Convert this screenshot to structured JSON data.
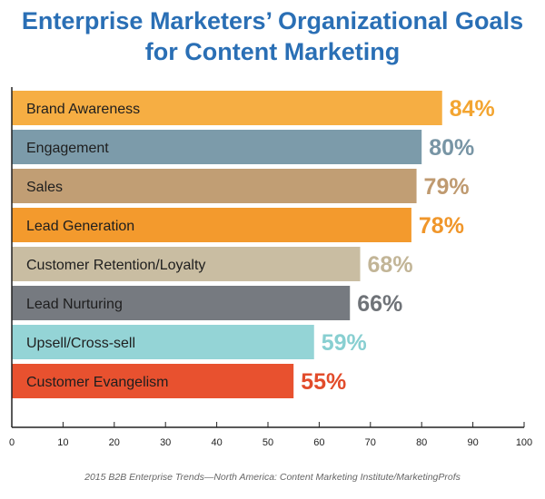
{
  "chart_data": {
    "type": "bar",
    "orientation": "horizontal",
    "title_lines": [
      "Enterprise Marketers’ Organizational Goals",
      "for Content Marketing"
    ],
    "categories": [
      "Brand Awareness",
      "Engagement",
      "Sales",
      "Lead Generation",
      "Customer Retention/Loyalty",
      "Lead Nurturing",
      "Upsell/Cross-sell",
      "Customer Evangelism"
    ],
    "values": [
      84,
      80,
      79,
      78,
      68,
      66,
      59,
      55
    ],
    "value_labels": [
      "84%",
      "80%",
      "79%",
      "78%",
      "68%",
      "66%",
      "59%",
      "55%"
    ],
    "colors": [
      "#f6ae43",
      "#7c9baa",
      "#c19e74",
      "#f39a2d",
      "#c9bda2",
      "#767a80",
      "#94d4d6",
      "#e8512f"
    ],
    "label_colors": [
      "#f3a531",
      "#7895a5",
      "#bf9a70",
      "#f0962a",
      "#c2b597",
      "#6f7378",
      "#88cfd1",
      "#e24c2b"
    ],
    "xlim": [
      0,
      100
    ],
    "xticks": [
      0,
      10,
      20,
      30,
      40,
      50,
      60,
      70,
      80,
      90,
      100
    ],
    "grid": false,
    "legend": "none",
    "source": "2015 B2B Enterprise Trends—North America: Content Marketing Institute/MarketingProfs"
  }
}
